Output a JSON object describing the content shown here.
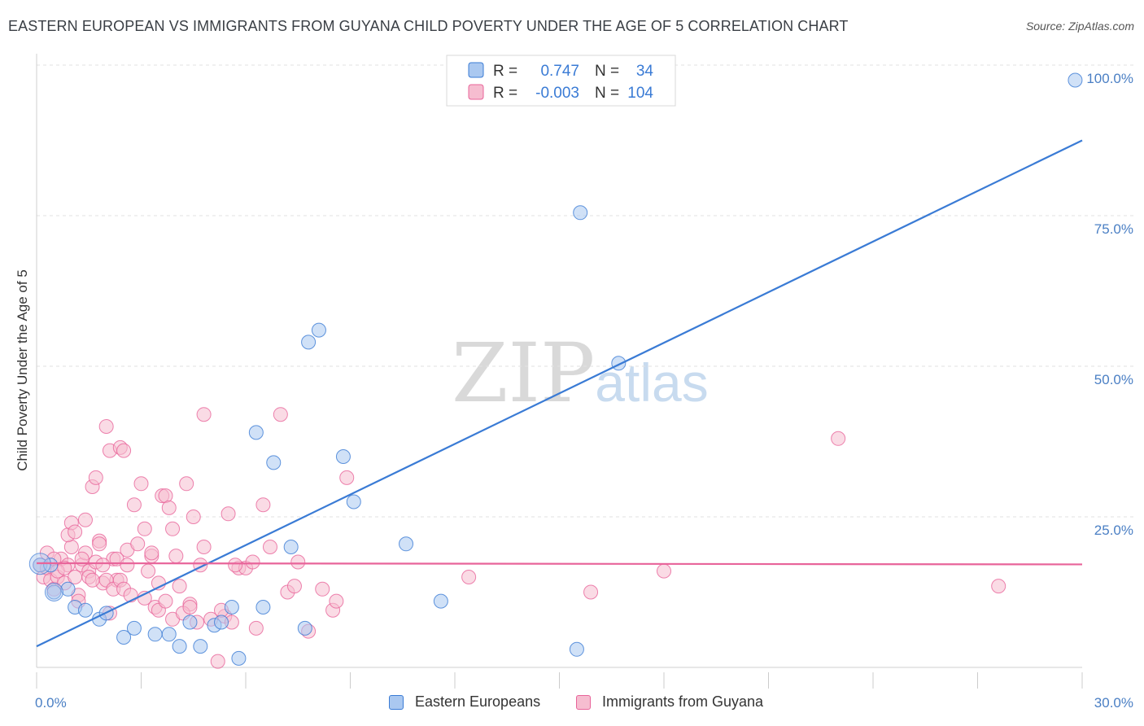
{
  "title": "EASTERN EUROPEAN VS IMMIGRANTS FROM GUYANA CHILD POVERTY UNDER THE AGE OF 5 CORRELATION CHART",
  "source": "Source: ZipAtlas.com",
  "watermark": {
    "zip": "ZIP",
    "atlas": "atlas"
  },
  "colors": {
    "blue": "#3a7bd5",
    "blue_fill": "#aac8f0",
    "pink": "#e8649a",
    "pink_fill": "#f6bdd0",
    "tick": "#4a7fc4"
  },
  "legend_top": {
    "rows": [
      {
        "r_label": "R =",
        "r_value": "0.747",
        "n_label": "N =",
        "n_value": "34"
      },
      {
        "r_label": "R =",
        "r_value": "-0.003",
        "n_label": "N =",
        "n_value": "104"
      }
    ]
  },
  "chart_data": {
    "type": "scatter",
    "title": "EASTERN EUROPEAN VS IMMIGRANTS FROM GUYANA CHILD POVERTY UNDER THE AGE OF 5 CORRELATION CHART",
    "xlabel": "",
    "ylabel": "Child Poverty Under the Age of 5",
    "xlim": [
      0,
      30
    ],
    "ylim": [
      0,
      100
    ],
    "x_tick_labels": [
      "0.0%",
      "30.0%"
    ],
    "y_tick_labels": [
      "100.0%",
      "75.0%",
      "50.0%",
      "25.0%"
    ],
    "y_tick_values": [
      100,
      75,
      50,
      25
    ],
    "legend_position": "top-center",
    "series": [
      {
        "name": "Eastern Europeans",
        "color": "#3a7bd5",
        "r": 0.747,
        "n": 34,
        "trend": {
          "x": [
            0,
            30
          ],
          "y": [
            3.5,
            87.5
          ]
        },
        "points": [
          [
            0.1,
            17.0
          ],
          [
            0.5,
            12.5
          ],
          [
            0.9,
            13.0
          ],
          [
            1.1,
            10.0
          ],
          [
            1.4,
            9.5
          ],
          [
            1.8,
            8.0
          ],
          [
            2.0,
            9.0
          ],
          [
            2.5,
            5.0
          ],
          [
            2.8,
            6.5
          ],
          [
            3.4,
            5.5
          ],
          [
            3.8,
            5.5
          ],
          [
            4.1,
            3.5
          ],
          [
            4.4,
            7.5
          ],
          [
            4.7,
            3.5
          ],
          [
            5.1,
            7.0
          ],
          [
            5.3,
            7.5
          ],
          [
            5.6,
            10.0
          ],
          [
            5.8,
            1.5
          ],
          [
            6.3,
            39.0
          ],
          [
            6.8,
            34.0
          ],
          [
            6.5,
            10.0
          ],
          [
            7.3,
            20.0
          ],
          [
            7.7,
            6.5
          ],
          [
            7.8,
            54.0
          ],
          [
            8.1,
            56.0
          ],
          [
            8.8,
            35.0
          ],
          [
            9.1,
            27.5
          ],
          [
            10.6,
            20.5
          ],
          [
            11.6,
            11.0
          ],
          [
            15.5,
            3.0
          ],
          [
            15.6,
            75.5
          ],
          [
            16.7,
            50.5
          ],
          [
            29.8,
            97.5
          ],
          [
            0.4,
            17.0
          ]
        ]
      },
      {
        "name": "Immigrants from Guyana",
        "color": "#e8649a",
        "r": -0.003,
        "n": 104,
        "trend": {
          "x": [
            0,
            30
          ],
          "y": [
            17.3,
            17.1
          ]
        },
        "points": [
          [
            0.1,
            17.0
          ],
          [
            0.2,
            15.0
          ],
          [
            0.3,
            16.5
          ],
          [
            0.4,
            14.5
          ],
          [
            0.5,
            13.0
          ],
          [
            0.6,
            15.0
          ],
          [
            0.7,
            18.0
          ],
          [
            0.8,
            14.0
          ],
          [
            0.9,
            17.0
          ],
          [
            1.0,
            20.0
          ],
          [
            1.1,
            15.0
          ],
          [
            1.2,
            12.0
          ],
          [
            1.3,
            17.0
          ],
          [
            1.4,
            19.0
          ],
          [
            1.5,
            16.0
          ],
          [
            1.6,
            30.0
          ],
          [
            1.7,
            31.5
          ],
          [
            1.8,
            21.0
          ],
          [
            1.9,
            14.0
          ],
          [
            2.0,
            40.0
          ],
          [
            2.1,
            36.0
          ],
          [
            2.2,
            18.0
          ],
          [
            2.3,
            14.5
          ],
          [
            2.4,
            36.5
          ],
          [
            2.5,
            36.0
          ],
          [
            2.6,
            19.5
          ],
          [
            2.8,
            27.0
          ],
          [
            3.0,
            30.5
          ],
          [
            3.1,
            23.0
          ],
          [
            3.2,
            16.0
          ],
          [
            3.3,
            18.5
          ],
          [
            3.4,
            10.0
          ],
          [
            3.5,
            14.0
          ],
          [
            3.6,
            28.5
          ],
          [
            3.7,
            28.5
          ],
          [
            3.8,
            26.5
          ],
          [
            3.9,
            23.0
          ],
          [
            4.0,
            18.5
          ],
          [
            4.1,
            13.5
          ],
          [
            4.3,
            30.5
          ],
          [
            4.4,
            10.5
          ],
          [
            4.5,
            25.0
          ],
          [
            4.6,
            7.5
          ],
          [
            4.7,
            17.0
          ],
          [
            4.8,
            42.0
          ],
          [
            5.0,
            8.0
          ],
          [
            5.2,
            1.0
          ],
          [
            5.4,
            8.5
          ],
          [
            5.5,
            25.5
          ],
          [
            5.6,
            7.5
          ],
          [
            5.8,
            16.5
          ],
          [
            6.0,
            16.5
          ],
          [
            6.3,
            6.5
          ],
          [
            6.5,
            27.0
          ],
          [
            6.7,
            20.0
          ],
          [
            7.0,
            42.0
          ],
          [
            7.2,
            12.5
          ],
          [
            7.4,
            13.5
          ],
          [
            7.5,
            17.5
          ],
          [
            7.8,
            6.0
          ],
          [
            8.2,
            13.0
          ],
          [
            8.5,
            9.5
          ],
          [
            8.9,
            31.5
          ],
          [
            0.3,
            19.0
          ],
          [
            0.5,
            18.0
          ],
          [
            0.6,
            16.0
          ],
          [
            0.8,
            16.5
          ],
          [
            0.9,
            22.0
          ],
          [
            1.0,
            24.0
          ],
          [
            1.1,
            22.5
          ],
          [
            1.2,
            11.0
          ],
          [
            1.3,
            18.0
          ],
          [
            1.4,
            24.5
          ],
          [
            1.5,
            15.0
          ],
          [
            1.6,
            14.5
          ],
          [
            1.7,
            17.5
          ],
          [
            1.8,
            20.5
          ],
          [
            1.9,
            17.0
          ],
          [
            2.0,
            14.5
          ],
          [
            2.1,
            9.0
          ],
          [
            2.2,
            13.0
          ],
          [
            2.3,
            18.0
          ],
          [
            2.4,
            14.5
          ],
          [
            2.5,
            13.0
          ],
          [
            2.6,
            17.0
          ],
          [
            2.7,
            12.0
          ],
          [
            2.9,
            20.5
          ],
          [
            3.1,
            11.5
          ],
          [
            3.3,
            19.0
          ],
          [
            3.5,
            9.5
          ],
          [
            3.7,
            11.0
          ],
          [
            3.9,
            8.0
          ],
          [
            4.2,
            9.0
          ],
          [
            4.4,
            10.0
          ],
          [
            4.8,
            20.0
          ],
          [
            5.3,
            9.5
          ],
          [
            5.7,
            17.0
          ],
          [
            6.2,
            17.5
          ],
          [
            8.6,
            11.0
          ],
          [
            12.4,
            15.0
          ],
          [
            15.9,
            12.5
          ],
          [
            18.0,
            16.0
          ],
          [
            23.0,
            38.0
          ],
          [
            27.6,
            13.5
          ]
        ]
      }
    ]
  },
  "bottom_legend": [
    {
      "label": "Eastern Europeans"
    },
    {
      "label": "Immigrants from Guyana"
    }
  ]
}
